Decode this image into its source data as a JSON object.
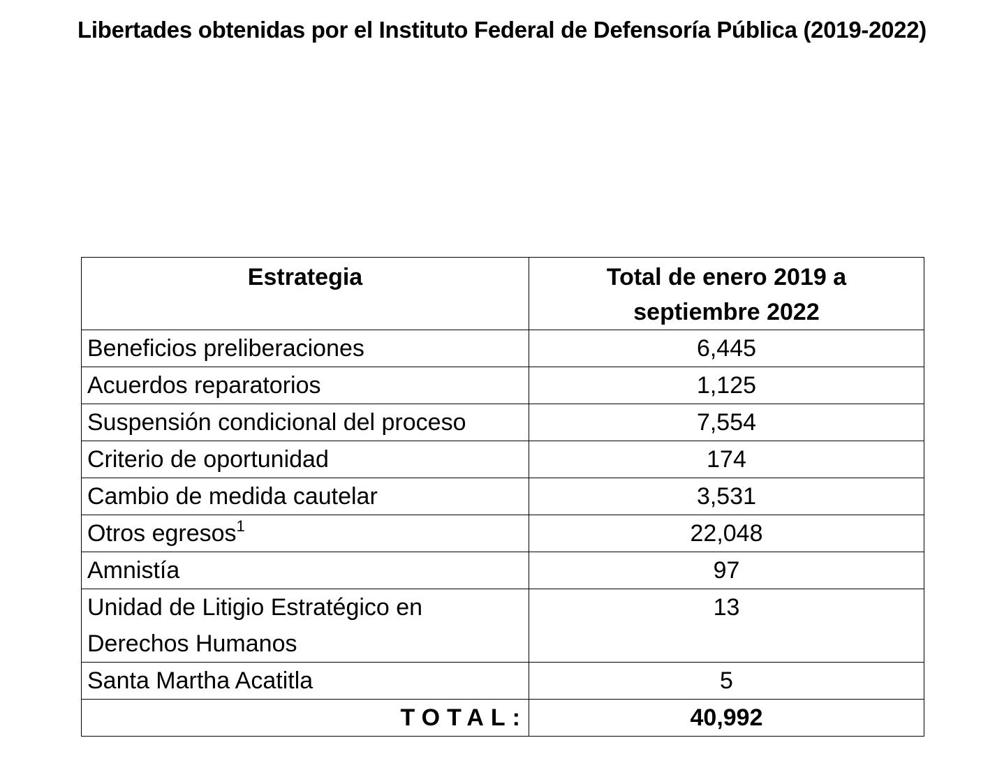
{
  "title": "Libertades obtenidas por el Instituto Federal de Defensoría Pública (2019-2022)",
  "table": {
    "headers": [
      "Estrategia",
      "Total de enero 2019 a septiembre 2022"
    ],
    "rows": [
      {
        "label": "Beneficios preliberaciones",
        "value": "6,445"
      },
      {
        "label": "Acuerdos reparatorios",
        "value": "1,125"
      },
      {
        "label": "Suspensión condicional del proceso",
        "value": "7,554"
      },
      {
        "label": "Criterio de oportunidad",
        "value": "174"
      },
      {
        "label": "Cambio de medida cautelar",
        "value": "3,531"
      },
      {
        "label": "Otros egresos",
        "footnote": "1",
        "value": "22,048"
      },
      {
        "label": "Amnistía",
        "value": "97"
      },
      {
        "label": "Unidad de Litigio Estratégico en Derechos Humanos",
        "value": "13"
      },
      {
        "label": "Santa Martha Acatitla",
        "value": "5"
      }
    ],
    "total_label": "TOTAL:",
    "total_value": "40,992"
  }
}
